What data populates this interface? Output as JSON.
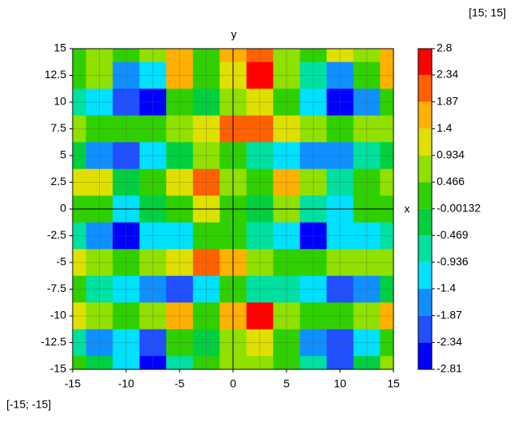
{
  "chart_data": {
    "type": "contour",
    "x_label": "x",
    "y_label": "y",
    "corner_max_label": "[15; 15]",
    "corner_min_label": "[-15; -15]",
    "x": [
      -15,
      -12.5,
      -10,
      -7.5,
      -5,
      -2.5,
      0,
      2.5,
      5,
      7.5,
      10,
      12.5,
      15
    ],
    "y": [
      15,
      12.5,
      10,
      7.5,
      5,
      2.5,
      0,
      -2.5,
      -5,
      -7.5,
      -10,
      -12.5,
      -15
    ],
    "z": [
      [
        0.3,
        0.8,
        0.2,
        0.5,
        1.5,
        0.3,
        1.5,
        2.3,
        0.8,
        0.3,
        1,
        0.5,
        1.5
      ],
      [
        0,
        0.5,
        -1.5,
        -1.2,
        1.5,
        0.2,
        1.2,
        2.6,
        0.8,
        -0.5,
        -1.5,
        0.3,
        1.8
      ],
      [
        -0.6,
        -1,
        -2.3,
        -2.5,
        0,
        -0.3,
        0.8,
        1.2,
        0,
        -1.2,
        -2.6,
        -1.5,
        0
      ],
      [
        0.5,
        0.3,
        0,
        0.3,
        0.6,
        1.2,
        2,
        1.9,
        1,
        0.5,
        0.3,
        0.5,
        0.6
      ],
      [
        -0.3,
        -1.5,
        -2,
        -1,
        -0.2,
        0.5,
        0.3,
        -0.5,
        -1,
        -1.8,
        -1.5,
        -0.6,
        -0.3
      ],
      [
        1,
        1.2,
        -0.3,
        0.3,
        1,
        2.2,
        0.8,
        0.3,
        1.8,
        0.5,
        -0.5,
        0.3,
        0.6
      ],
      [
        0.3,
        0,
        -1,
        -0.3,
        0,
        1.3,
        0.3,
        -0.3,
        0.6,
        -0.8,
        -1,
        0,
        0.2
      ],
      [
        -0.6,
        -1.5,
        -2.5,
        -1.2,
        -1,
        0,
        0.2,
        -0.8,
        -1.3,
        -2.4,
        -1.3,
        -1,
        -0.5
      ],
      [
        1.2,
        0.5,
        0.2,
        0.6,
        1.2,
        2,
        1.5,
        0.6,
        0.3,
        0.4,
        0.6,
        0.5,
        0.8
      ],
      [
        0.2,
        -0.8,
        -1,
        -1.5,
        -2,
        -1,
        0,
        -0.5,
        -0.8,
        -1.3,
        -1.9,
        -1.5,
        -0.2
      ],
      [
        1,
        0.5,
        0,
        0.5,
        1.5,
        0.3,
        1.5,
        2.5,
        0.8,
        0,
        0.3,
        0.8,
        1.5
      ],
      [
        -0.5,
        -1.5,
        -1,
        -2.3,
        0.3,
        -0.3,
        0.5,
        1.2,
        0,
        -1.5,
        -2,
        -1,
        0.3
      ],
      [
        0,
        -0.3,
        -1.2,
        -2.5,
        -0.5,
        0.2,
        0.5,
        0.8,
        0,
        -0.5,
        -2.3,
        -0.3,
        0.5
      ]
    ],
    "xlim": [
      -15,
      15
    ],
    "ylim": [
      -15,
      15
    ],
    "xticks": [
      -15,
      -10,
      -5,
      0,
      5,
      10,
      15
    ],
    "yticks": [
      -15,
      -12.5,
      -10,
      -7.5,
      -5,
      -2.5,
      0,
      2.5,
      5,
      7.5,
      10,
      12.5,
      15
    ],
    "grid_x": [
      -15,
      -12.5,
      -10,
      -7.5,
      -5,
      -2.5,
      0,
      2.5,
      5,
      7.5,
      10,
      12.5,
      15
    ],
    "grid": true,
    "colorbar": {
      "levels": [
        -2.81,
        -2.34,
        -1.87,
        -1.4,
        -0.936,
        -0.469,
        -0.00132,
        0.466,
        0.934,
        1.4,
        1.87,
        2.34,
        2.8
      ],
      "colors": [
        "#0000ff",
        "#2050ff",
        "#1090ff",
        "#00e0ff",
        "#00e0a0",
        "#00d040",
        "#30d000",
        "#90e000",
        "#e0e000",
        "#ffb000",
        "#ff6000",
        "#ff0000"
      ]
    }
  }
}
